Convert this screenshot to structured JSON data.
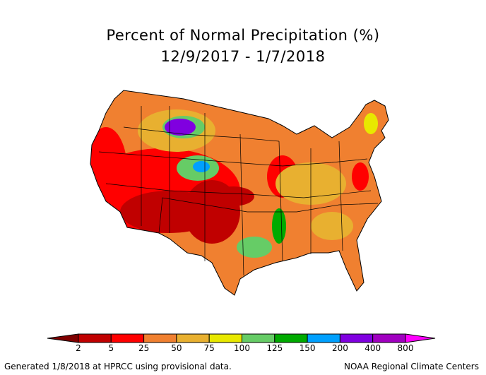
{
  "title": "Percent of Normal Precipitation (%)",
  "subtitle": "12/9/2017 - 1/7/2018",
  "legend": {
    "ticks": [
      "2",
      "5",
      "25",
      "50",
      "75",
      "100",
      "125",
      "150",
      "200",
      "400",
      "800"
    ],
    "colors": [
      "#7f0000",
      "#c00000",
      "#ff0000",
      "#f08030",
      "#e8b030",
      "#e8e800",
      "#66cc66",
      "#00aa00",
      "#00a0ff",
      "#8000e0",
      "#a000c0",
      "#ff00ff"
    ]
  },
  "footer": {
    "left": "Generated 1/8/2018 at HPRCC using provisional data.",
    "right": "NOAA Regional Climate Centers"
  }
}
